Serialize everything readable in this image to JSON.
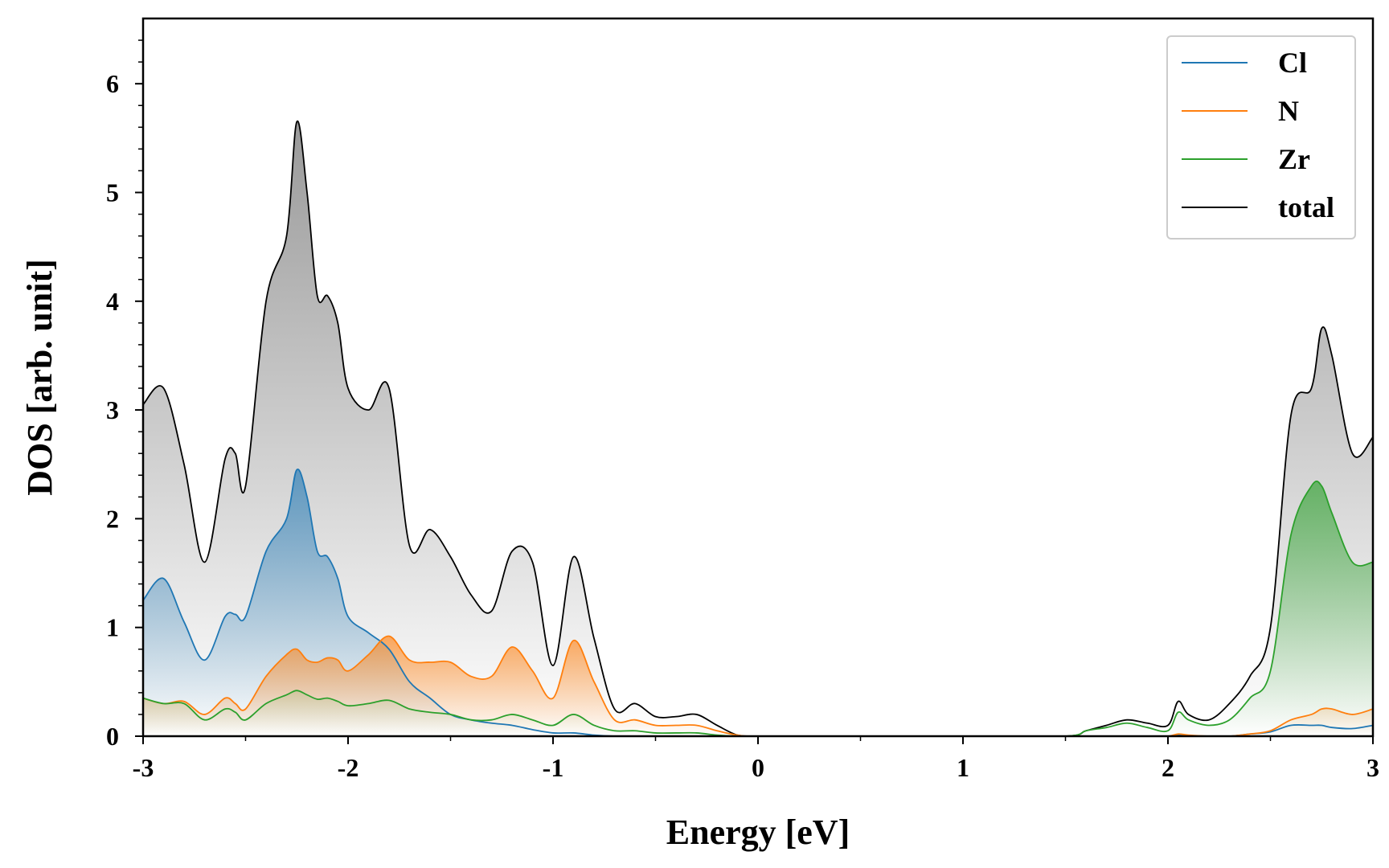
{
  "chart_data": {
    "type": "line",
    "title": "",
    "xlabel": "Energy [eV]",
    "ylabel": "DOS [arb. unit]",
    "xlim": [
      -3,
      3
    ],
    "ylim": [
      0,
      6.6
    ],
    "grid": false,
    "legend_position": "top-right",
    "x_ticks": [
      -3,
      -2,
      -1,
      0,
      1,
      2,
      3
    ],
    "x_tick_labels": [
      "-3",
      "-2",
      "-1",
      "0",
      "1",
      "2",
      "3"
    ],
    "y_ticks": [
      0,
      1,
      2,
      3,
      4,
      5,
      6
    ],
    "y_tick_labels": [
      "0",
      "1",
      "2",
      "3",
      "4",
      "5",
      "6"
    ],
    "x": [
      -3.0,
      -2.9,
      -2.8,
      -2.7,
      -2.6,
      -2.55,
      -2.5,
      -2.4,
      -2.3,
      -2.25,
      -2.2,
      -2.15,
      -2.1,
      -2.05,
      -2.0,
      -1.9,
      -1.8,
      -1.7,
      -1.6,
      -1.5,
      -1.4,
      -1.3,
      -1.2,
      -1.1,
      -1.0,
      -0.9,
      -0.8,
      -0.7,
      -0.6,
      -0.5,
      -0.4,
      -0.3,
      -0.2,
      -0.1,
      0.0,
      0.5,
      1.0,
      1.5,
      1.6,
      1.7,
      1.8,
      1.9,
      2.0,
      2.05,
      2.1,
      2.2,
      2.3,
      2.4,
      2.5,
      2.6,
      2.7,
      2.75,
      2.8,
      2.9,
      3.0
    ],
    "series": [
      {
        "name": "Cl",
        "color": "#1f77b4",
        "values": [
          1.25,
          1.45,
          1.05,
          0.7,
          1.1,
          1.12,
          1.1,
          1.7,
          2.0,
          2.45,
          2.2,
          1.7,
          1.65,
          1.45,
          1.1,
          0.95,
          0.8,
          0.5,
          0.35,
          0.2,
          0.15,
          0.12,
          0.1,
          0.06,
          0.03,
          0.03,
          0.01,
          0.0,
          0.0,
          0.0,
          0.0,
          0.0,
          0.0,
          0.0,
          0.0,
          0.0,
          0.0,
          0.0,
          0.0,
          0.0,
          0.0,
          0.0,
          0.0,
          0.01,
          0.0,
          0.0,
          0.0,
          0.02,
          0.04,
          0.1,
          0.1,
          0.1,
          0.08,
          0.07,
          0.1
        ]
      },
      {
        "name": "N",
        "color": "#ff7f0e",
        "values": [
          0.35,
          0.3,
          0.32,
          0.2,
          0.35,
          0.3,
          0.25,
          0.55,
          0.75,
          0.8,
          0.7,
          0.68,
          0.72,
          0.7,
          0.6,
          0.75,
          0.92,
          0.7,
          0.68,
          0.68,
          0.55,
          0.55,
          0.82,
          0.6,
          0.35,
          0.88,
          0.5,
          0.15,
          0.15,
          0.1,
          0.1,
          0.1,
          0.05,
          0.01,
          0.0,
          0.0,
          0.0,
          0.0,
          0.0,
          0.0,
          0.0,
          0.0,
          0.0,
          0.02,
          0.01,
          0.0,
          0.0,
          0.02,
          0.05,
          0.15,
          0.2,
          0.25,
          0.25,
          0.2,
          0.25
        ]
      },
      {
        "name": "Zr",
        "color": "#2ca02c",
        "values": [
          0.35,
          0.3,
          0.3,
          0.15,
          0.25,
          0.22,
          0.15,
          0.3,
          0.38,
          0.42,
          0.38,
          0.34,
          0.35,
          0.32,
          0.28,
          0.3,
          0.33,
          0.25,
          0.22,
          0.2,
          0.15,
          0.15,
          0.2,
          0.15,
          0.1,
          0.2,
          0.1,
          0.05,
          0.05,
          0.03,
          0.03,
          0.03,
          0.01,
          0.0,
          0.0,
          0.0,
          0.0,
          0.0,
          0.05,
          0.08,
          0.12,
          0.08,
          0.05,
          0.22,
          0.15,
          0.1,
          0.15,
          0.35,
          0.6,
          1.85,
          2.3,
          2.3,
          2.05,
          1.6,
          1.6
        ]
      },
      {
        "name": "total",
        "color": "#000000",
        "values": [
          3.05,
          3.2,
          2.5,
          1.6,
          2.55,
          2.6,
          2.3,
          4.0,
          4.6,
          5.65,
          5.0,
          4.05,
          4.05,
          3.8,
          3.2,
          3.0,
          3.2,
          1.75,
          1.9,
          1.65,
          1.3,
          1.15,
          1.7,
          1.6,
          0.65,
          1.65,
          0.9,
          0.25,
          0.3,
          0.18,
          0.18,
          0.2,
          0.1,
          0.01,
          0.0,
          0.0,
          0.0,
          0.0,
          0.05,
          0.1,
          0.15,
          0.12,
          0.1,
          0.32,
          0.2,
          0.15,
          0.3,
          0.55,
          1.0,
          2.95,
          3.2,
          3.75,
          3.5,
          2.6,
          2.75
        ]
      }
    ]
  }
}
